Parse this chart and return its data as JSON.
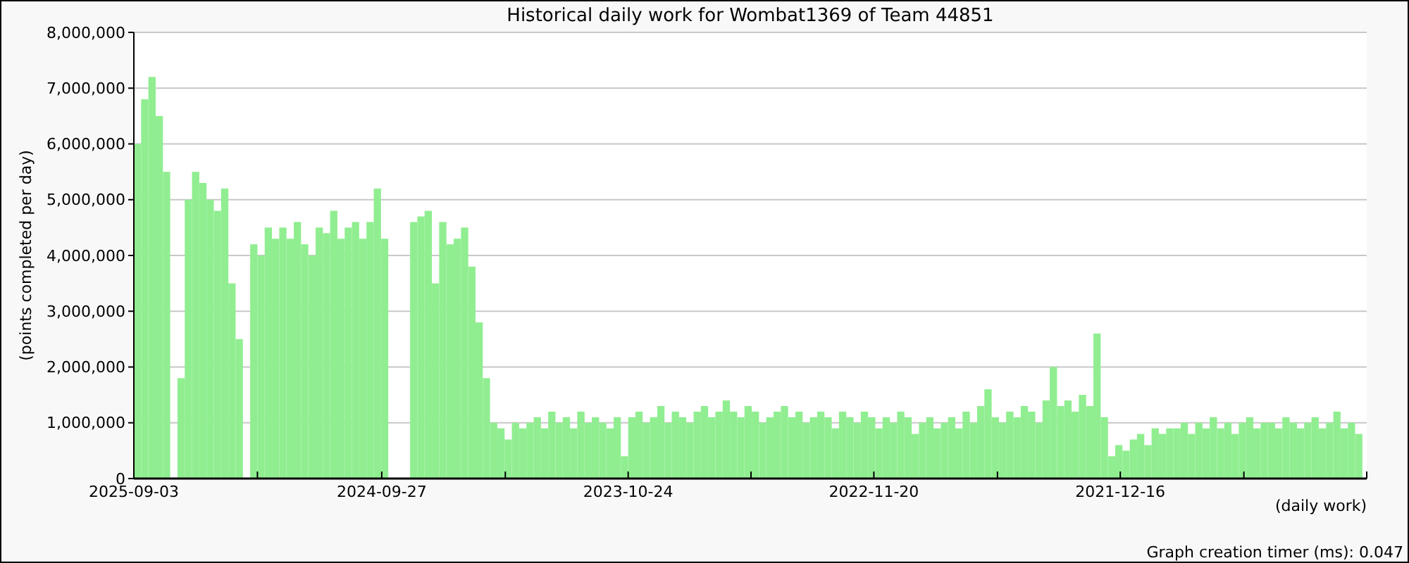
{
  "chart_data": {
    "type": "bar",
    "title": "Historical daily work for Wombat1369 of Team 44851",
    "ylabel": "(points completed per day)",
    "xlabel": "(daily work)",
    "annotations": [
      "Graph creation timer (ms): 0.047"
    ],
    "color": "#90ee90",
    "grid": "y",
    "xlim": [
      "2025-09-03",
      "2021-01-11"
    ],
    "xticks": [
      {
        "value": "2025-09-03",
        "label": "2025-09-03"
      },
      {
        "value": "2025-03-17",
        "label": null
      },
      {
        "value": "2024-09-27",
        "label": "2024-09-27"
      },
      {
        "value": "2024-04-10",
        "label": null
      },
      {
        "value": "2023-10-24",
        "label": "2023-10-24"
      },
      {
        "value": "2023-05-08",
        "label": null
      },
      {
        "value": "2022-11-20",
        "label": "2022-11-20"
      },
      {
        "value": "2022-06-03",
        "label": null
      },
      {
        "value": "2021-12-16",
        "label": "2021-12-16"
      },
      {
        "value": "2021-06-29",
        "label": null
      },
      {
        "value": "2021-01-11",
        "label": null
      }
    ],
    "ylim": [
      0,
      8000000
    ],
    "yticks": [
      {
        "value": 0,
        "label": "0"
      },
      {
        "value": 1000000,
        "label": "1,000,000"
      },
      {
        "value": 2000000,
        "label": "2,000,000"
      },
      {
        "value": 3000000,
        "label": "3,000,000"
      },
      {
        "value": 4000000,
        "label": "4,000,000"
      },
      {
        "value": 5000000,
        "label": "5,000,000"
      },
      {
        "value": 6000000,
        "label": "6,000,000"
      },
      {
        "value": 7000000,
        "label": "7,000,000"
      },
      {
        "value": 8000000,
        "label": "8,000,000"
      }
    ],
    "x": [
      "2025-09-03",
      "2025-08-24",
      "2025-08-14",
      "2025-08-04",
      "2025-07-25",
      "2025-07-15",
      "2025-07-05",
      "2025-06-25",
      "2025-06-15",
      "2025-06-05",
      "2025-05-26",
      "2025-05-16",
      "2025-05-06",
      "2025-04-26",
      "2025-04-16",
      "2025-04-06",
      "2025-03-27",
      "2025-03-17",
      "2025-03-07",
      "2025-02-25",
      "2025-02-15",
      "2025-02-05",
      "2025-01-26",
      "2025-01-16",
      "2025-01-06",
      "2024-12-27",
      "2024-12-17",
      "2024-12-07",
      "2024-11-27",
      "2024-11-17",
      "2024-11-07",
      "2024-10-28",
      "2024-10-18",
      "2024-10-08",
      "2024-09-28",
      "2024-09-18",
      "2024-09-08",
      "2024-08-29",
      "2024-08-19",
      "2024-08-09",
      "2024-07-30",
      "2024-07-20",
      "2024-07-10",
      "2024-06-30",
      "2024-06-20",
      "2024-06-10",
      "2024-05-31",
      "2024-05-21",
      "2024-05-11",
      "2024-05-01",
      "2024-04-21",
      "2024-04-11",
      "2024-04-01",
      "2024-03-22",
      "2024-03-12",
      "2024-03-02",
      "2024-02-21",
      "2024-02-11",
      "2024-02-01",
      "2024-01-22",
      "2024-01-12",
      "2024-01-02",
      "2023-12-23",
      "2023-12-13",
      "2023-12-03",
      "2023-11-23",
      "2023-11-13",
      "2023-11-03",
      "2023-10-24",
      "2023-10-14",
      "2023-10-04",
      "2023-09-24",
      "2023-09-14",
      "2023-09-04",
      "2023-08-25",
      "2023-08-15",
      "2023-08-05",
      "2023-07-26",
      "2023-07-16",
      "2023-07-06",
      "2023-06-26",
      "2023-06-16",
      "2023-06-06",
      "2023-05-27",
      "2023-05-17",
      "2023-05-07",
      "2023-04-27",
      "2023-04-17",
      "2023-04-07",
      "2023-03-28",
      "2023-03-18",
      "2023-03-08",
      "2023-02-26",
      "2023-02-16",
      "2023-02-06",
      "2023-01-27",
      "2023-01-17",
      "2023-01-07",
      "2022-12-28",
      "2022-12-18",
      "2022-12-08",
      "2022-11-28",
      "2022-11-18",
      "2022-11-08",
      "2022-10-29",
      "2022-10-19",
      "2022-10-09",
      "2022-09-29",
      "2022-09-19",
      "2022-09-09",
      "2022-08-30",
      "2022-08-20",
      "2022-08-10",
      "2022-07-31",
      "2022-07-21",
      "2022-07-11",
      "2022-07-01",
      "2022-06-21",
      "2022-06-11",
      "2022-06-01",
      "2022-05-22",
      "2022-05-12",
      "2022-05-02",
      "2022-04-22",
      "2022-04-12",
      "2022-04-02",
      "2022-03-23",
      "2022-03-13",
      "2022-03-03",
      "2022-02-21",
      "2022-02-11",
      "2022-02-01",
      "2022-01-22",
      "2022-01-12",
      "2022-01-02",
      "2021-12-23",
      "2021-12-13",
      "2021-12-03",
      "2021-11-23",
      "2021-11-13",
      "2021-11-03",
      "2021-10-24",
      "2021-10-14",
      "2021-10-04",
      "2021-09-24",
      "2021-09-14",
      "2021-09-04",
      "2021-08-25",
      "2021-08-15",
      "2021-08-05",
      "2021-07-26",
      "2021-07-16",
      "2021-07-06",
      "2021-06-26",
      "2021-06-16",
      "2021-06-06",
      "2021-05-27",
      "2021-05-17",
      "2021-05-07",
      "2021-04-27",
      "2021-04-17",
      "2021-04-07",
      "2021-03-28",
      "2021-03-18",
      "2021-03-08",
      "2021-02-26",
      "2021-02-16",
      "2021-02-06",
      "2021-01-27"
    ],
    "values": [
      6000000,
      6800000,
      7200000,
      6500000,
      5500000,
      0,
      1800000,
      5000000,
      5500000,
      5300000,
      5000000,
      4800000,
      5200000,
      3500000,
      2500000,
      0,
      4200000,
      4000000,
      4500000,
      4300000,
      4500000,
      4300000,
      4600000,
      4200000,
      4000000,
      4500000,
      4400000,
      4800000,
      4300000,
      4500000,
      4600000,
      4300000,
      4600000,
      5200000,
      4300000,
      0,
      0,
      0,
      4600000,
      4700000,
      4800000,
      3500000,
      4600000,
      4200000,
      4300000,
      4500000,
      3800000,
      2800000,
      1800000,
      1000000,
      900000,
      700000,
      1000000,
      900000,
      1000000,
      1100000,
      900000,
      1200000,
      1000000,
      1100000,
      900000,
      1200000,
      1000000,
      1100000,
      1000000,
      900000,
      1100000,
      400000,
      1100000,
      1200000,
      1000000,
      1100000,
      1300000,
      1000000,
      1200000,
      1100000,
      1000000,
      1200000,
      1300000,
      1100000,
      1200000,
      1400000,
      1200000,
      1100000,
      1300000,
      1200000,
      1000000,
      1100000,
      1200000,
      1300000,
      1100000,
      1200000,
      1000000,
      1100000,
      1200000,
      1100000,
      900000,
      1200000,
      1100000,
      1000000,
      1200000,
      1100000,
      900000,
      1100000,
      1000000,
      1200000,
      1100000,
      800000,
      1000000,
      1100000,
      900000,
      1000000,
      1100000,
      900000,
      1200000,
      1000000,
      1300000,
      1600000,
      1100000,
      1000000,
      1200000,
      1100000,
      1300000,
      1200000,
      1000000,
      1400000,
      2000000,
      1300000,
      1400000,
      1200000,
      1500000,
      1300000,
      2600000,
      1100000,
      400000,
      600000,
      500000,
      700000,
      800000,
      600000,
      900000,
      800000,
      900000,
      900000,
      1000000,
      800000,
      1000000,
      900000,
      1100000,
      900000,
      1000000,
      800000,
      1000000,
      1100000,
      900000,
      1000000,
      1000000,
      900000,
      1100000,
      1000000,
      900000,
      1000000,
      1100000,
      900000,
      1000000,
      1200000,
      900000,
      1000000,
      800000
    ]
  }
}
